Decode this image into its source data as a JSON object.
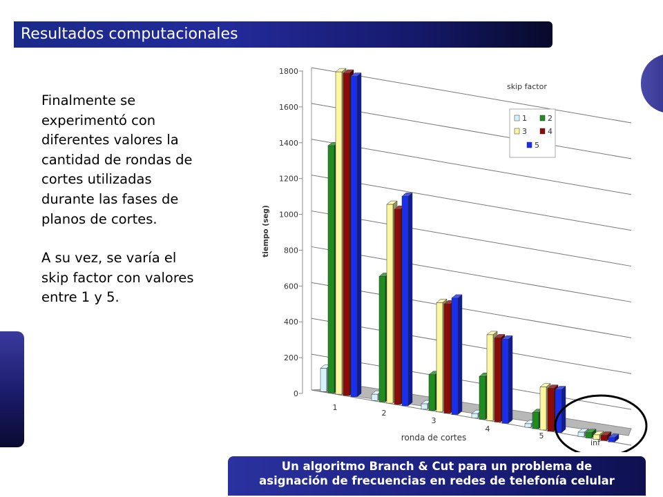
{
  "slide": {
    "title": "Resultados computacionales",
    "paragraph1": "Finalmente se\nexperimentó con\ndiferentes valores la\ncantidad de rondas de\ncortes utilizadas\ndurante las fases de\nplanos de cortes.",
    "paragraph2": "A su vez, se varía el\nskip factor con valores\nentre 1 y 5.",
    "footer": "Un algoritmo Branch & Cut para un problema de\nasignación de frecuencias en redes de telefonía celular"
  },
  "chart_data": {
    "type": "bar",
    "xlabel": "ronda de cortes",
    "ylabel": "tiempo (seg)",
    "categories": [
      "1",
      "2",
      "3",
      "4",
      "5",
      "inf"
    ],
    "yticks": [
      0,
      200,
      400,
      600,
      800,
      1000,
      1200,
      1400,
      1600,
      1800
    ],
    "ylim": [
      0,
      1800
    ],
    "legend_title": "skip factor",
    "legend_position": "top-right",
    "grid": true,
    "highlight_category": "inf",
    "series": [
      {
        "name": "1",
        "color": "#d4f2fa",
        "values": [
          130,
          35,
          30,
          25,
          20,
          25
        ]
      },
      {
        "name": "2",
        "color": "#1e8c1e",
        "values": [
          1380,
          700,
          200,
          240,
          90,
          30
        ]
      },
      {
        "name": "3",
        "color": "#fbf7a0",
        "values": [
          1800,
          1110,
          610,
          480,
          240,
          25
        ]
      },
      {
        "name": "4",
        "color": "#8b0a0a",
        "values": [
          1800,
          1090,
          610,
          470,
          240,
          30
        ]
      },
      {
        "name": "5",
        "color": "#1a2ef0",
        "values": [
          1790,
          1170,
          650,
          470,
          240,
          25
        ]
      }
    ]
  }
}
